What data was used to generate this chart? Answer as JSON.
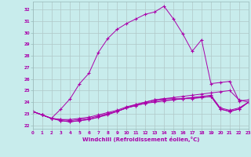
{
  "title": "",
  "xlabel": "Windchill (Refroidissement éolien,°C)",
  "ylabel": "",
  "bg_color": "#c8ecec",
  "line_color": "#aa00aa",
  "grid_color": "#b0c8c8",
  "ylim": [
    21.7,
    32.7
  ],
  "xlim": [
    0,
    23
  ],
  "yticks": [
    22,
    23,
    24,
    25,
    26,
    27,
    28,
    29,
    30,
    31,
    32
  ],
  "xticks": [
    0,
    1,
    2,
    3,
    4,
    5,
    6,
    7,
    8,
    9,
    10,
    11,
    12,
    13,
    14,
    15,
    16,
    17,
    18,
    19,
    20,
    21,
    22,
    23
  ],
  "series": [
    [
      23.2,
      22.9,
      22.6,
      22.5,
      22.5,
      22.6,
      22.7,
      22.9,
      23.1,
      23.3,
      23.6,
      23.8,
      24.0,
      24.2,
      24.3,
      24.4,
      24.5,
      24.6,
      24.7,
      24.8,
      24.9,
      25.0,
      24.2,
      24.0
    ],
    [
      23.2,
      22.9,
      22.6,
      22.5,
      22.4,
      22.5,
      22.6,
      22.8,
      23.0,
      23.2,
      23.5,
      23.7,
      23.9,
      24.0,
      24.1,
      24.2,
      24.3,
      24.4,
      24.5,
      24.6,
      23.5,
      23.3,
      23.5,
      24.0
    ],
    [
      23.2,
      22.9,
      22.6,
      22.4,
      22.3,
      22.4,
      22.5,
      22.7,
      22.9,
      23.2,
      23.5,
      23.7,
      23.9,
      24.1,
      24.2,
      24.2,
      24.3,
      24.3,
      24.4,
      24.5,
      23.4,
      23.2,
      23.4,
      24.0
    ],
    [
      23.2,
      22.9,
      22.6,
      22.4,
      22.3,
      22.4,
      22.5,
      22.7,
      23.0,
      23.2,
      23.5,
      23.8,
      24.0,
      24.2,
      24.3,
      24.3,
      24.3,
      24.4,
      24.4,
      24.5,
      23.4,
      23.2,
      23.4,
      24.0
    ],
    [
      23.2,
      22.9,
      22.6,
      23.4,
      24.3,
      25.6,
      26.5,
      28.3,
      29.5,
      30.3,
      30.8,
      31.2,
      31.6,
      31.8,
      32.3,
      31.2,
      29.9,
      28.4,
      29.4,
      25.6,
      25.7,
      25.8,
      24.1,
      24.2
    ]
  ]
}
